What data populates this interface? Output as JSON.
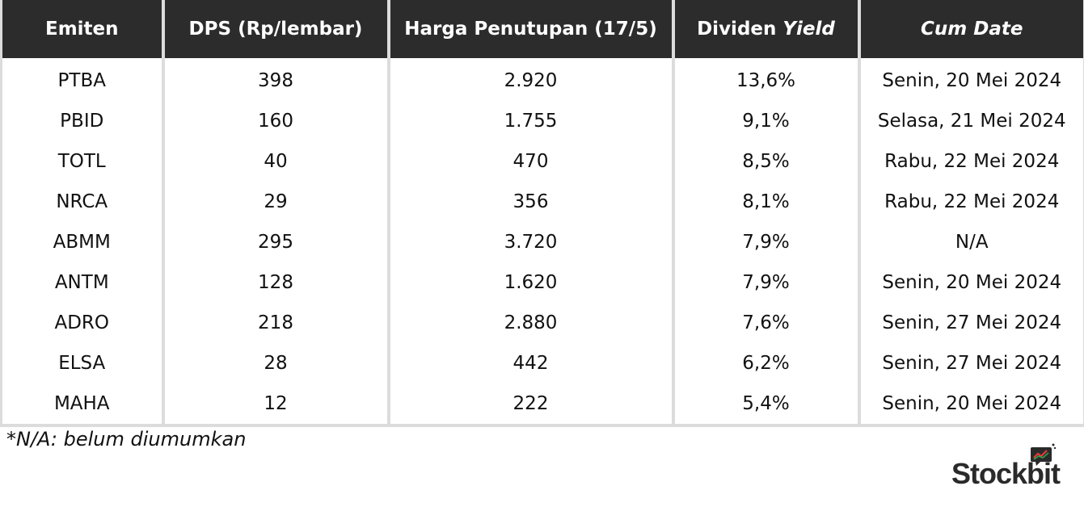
{
  "table": {
    "headers": [
      {
        "text": "Emiten",
        "italic": ""
      },
      {
        "text": "DPS (Rp/lembar)",
        "italic": ""
      },
      {
        "text": "Harga Penutupan (17/5)",
        "italic": ""
      },
      {
        "text": "Dividen ",
        "italic": "Yield"
      },
      {
        "text": "",
        "italic": "Cum Date"
      }
    ],
    "rows": [
      [
        "PTBA",
        "398",
        "2.920",
        "13,6%",
        "Senin, 20 Mei 2024"
      ],
      [
        "PBID",
        "160",
        "1.755",
        "9,1%",
        "Selasa, 21 Mei 2024"
      ],
      [
        "TOTL",
        "40",
        "470",
        "8,5%",
        "Rabu, 22 Mei 2024"
      ],
      [
        "NRCA",
        "29",
        "356",
        "8,1%",
        "Rabu, 22 Mei 2024"
      ],
      [
        "ABMM",
        "295",
        "3.720",
        "7,9%",
        "N/A"
      ],
      [
        "ANTM",
        "128",
        "1.620",
        "7,9%",
        "Senin, 20 Mei 2024"
      ],
      [
        "ADRO",
        "218",
        "2.880",
        "7,6%",
        "Senin, 27 Mei 2024"
      ],
      [
        "ELSA",
        "28",
        "442",
        "6,2%",
        "Senin, 27 Mei 2024"
      ],
      [
        "MAHA",
        "12",
        "222",
        "5,4%",
        "Senin, 20 Mei 2024"
      ]
    ]
  },
  "footnote": "*N/A: belum diumumkan",
  "logo": {
    "text": "Stockbit",
    "icon": "chart-bubble-icon"
  },
  "colors": {
    "header_bg": "#2c2c2c",
    "header_text": "#ffffff",
    "grid": "#dcdcdc",
    "logo_accent": "#e43a3a",
    "logo_green": "#2ea44f"
  }
}
